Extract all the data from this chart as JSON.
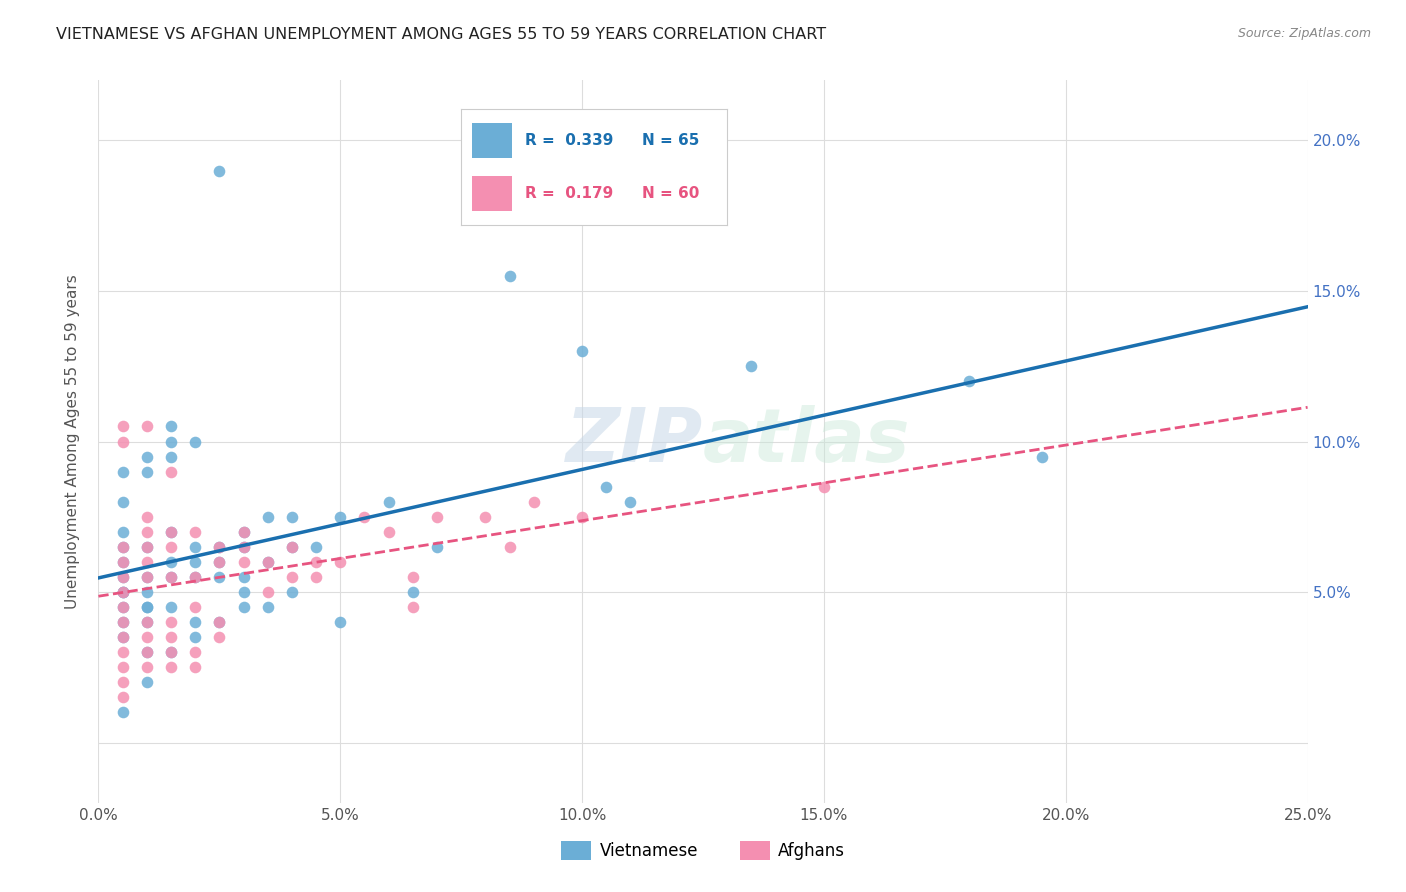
{
  "title": "VIETNAMESE VS AFGHAN UNEMPLOYMENT AMONG AGES 55 TO 59 YEARS CORRELATION CHART",
  "source": "Source: ZipAtlas.com",
  "ylabel": "Unemployment Among Ages 55 to 59 years",
  "xlim": [
    0,
    0.25
  ],
  "ylim": [
    -0.02,
    0.22
  ],
  "xticks": [
    0.0,
    0.05,
    0.1,
    0.15,
    0.2,
    0.25
  ],
  "yticks": [
    0.0,
    0.05,
    0.1,
    0.15,
    0.2
  ],
  "watermark": "ZIPatlas",
  "legend_r_vietnamese": "0.339",
  "legend_n_vietnamese": "65",
  "legend_r_afghan": "0.179",
  "legend_n_afghan": "60",
  "vietnamese_color": "#6baed6",
  "afghan_color": "#f48fb1",
  "trendline_vietnamese_color": "#1a6faf",
  "trendline_afghan_color": "#e75480",
  "vietnamese_points": [
    [
      0.005,
      0.045
    ],
    [
      0.005,
      0.06
    ],
    [
      0.005,
      0.07
    ],
    [
      0.005,
      0.05
    ],
    [
      0.005,
      0.04
    ],
    [
      0.005,
      0.035
    ],
    [
      0.005,
      0.05
    ],
    [
      0.005,
      0.09
    ],
    [
      0.005,
      0.08
    ],
    [
      0.005,
      0.065
    ],
    [
      0.005,
      0.055
    ],
    [
      0.005,
      0.01
    ],
    [
      0.01,
      0.045
    ],
    [
      0.01,
      0.09
    ],
    [
      0.01,
      0.095
    ],
    [
      0.01,
      0.065
    ],
    [
      0.01,
      0.055
    ],
    [
      0.01,
      0.05
    ],
    [
      0.01,
      0.04
    ],
    [
      0.01,
      0.03
    ],
    [
      0.01,
      0.02
    ],
    [
      0.01,
      0.045
    ],
    [
      0.015,
      0.095
    ],
    [
      0.015,
      0.105
    ],
    [
      0.015,
      0.1
    ],
    [
      0.015,
      0.055
    ],
    [
      0.015,
      0.06
    ],
    [
      0.015,
      0.07
    ],
    [
      0.015,
      0.045
    ],
    [
      0.015,
      0.03
    ],
    [
      0.02,
      0.06
    ],
    [
      0.02,
      0.1
    ],
    [
      0.02,
      0.065
    ],
    [
      0.02,
      0.055
    ],
    [
      0.02,
      0.04
    ],
    [
      0.02,
      0.035
    ],
    [
      0.025,
      0.065
    ],
    [
      0.025,
      0.04
    ],
    [
      0.025,
      0.06
    ],
    [
      0.025,
      0.055
    ],
    [
      0.03,
      0.045
    ],
    [
      0.03,
      0.05
    ],
    [
      0.03,
      0.055
    ],
    [
      0.03,
      0.07
    ],
    [
      0.03,
      0.065
    ],
    [
      0.035,
      0.06
    ],
    [
      0.035,
      0.045
    ],
    [
      0.035,
      0.075
    ],
    [
      0.04,
      0.065
    ],
    [
      0.04,
      0.075
    ],
    [
      0.04,
      0.05
    ],
    [
      0.045,
      0.065
    ],
    [
      0.05,
      0.075
    ],
    [
      0.05,
      0.04
    ],
    [
      0.06,
      0.08
    ],
    [
      0.065,
      0.05
    ],
    [
      0.07,
      0.065
    ],
    [
      0.085,
      0.155
    ],
    [
      0.1,
      0.13
    ],
    [
      0.105,
      0.085
    ],
    [
      0.11,
      0.08
    ],
    [
      0.135,
      0.125
    ],
    [
      0.18,
      0.12
    ],
    [
      0.195,
      0.095
    ],
    [
      0.025,
      0.19
    ]
  ],
  "afghan_points": [
    [
      0.005,
      0.04
    ],
    [
      0.005,
      0.035
    ],
    [
      0.005,
      0.03
    ],
    [
      0.005,
      0.025
    ],
    [
      0.005,
      0.02
    ],
    [
      0.005,
      0.045
    ],
    [
      0.005,
      0.055
    ],
    [
      0.005,
      0.105
    ],
    [
      0.005,
      0.1
    ],
    [
      0.005,
      0.06
    ],
    [
      0.005,
      0.05
    ],
    [
      0.005,
      0.065
    ],
    [
      0.01,
      0.04
    ],
    [
      0.01,
      0.035
    ],
    [
      0.01,
      0.03
    ],
    [
      0.01,
      0.025
    ],
    [
      0.01,
      0.055
    ],
    [
      0.01,
      0.06
    ],
    [
      0.01,
      0.065
    ],
    [
      0.01,
      0.07
    ],
    [
      0.01,
      0.075
    ],
    [
      0.01,
      0.105
    ],
    [
      0.015,
      0.035
    ],
    [
      0.015,
      0.03
    ],
    [
      0.015,
      0.025
    ],
    [
      0.015,
      0.04
    ],
    [
      0.015,
      0.055
    ],
    [
      0.015,
      0.07
    ],
    [
      0.015,
      0.065
    ],
    [
      0.015,
      0.09
    ],
    [
      0.02,
      0.03
    ],
    [
      0.02,
      0.025
    ],
    [
      0.02,
      0.045
    ],
    [
      0.02,
      0.055
    ],
    [
      0.02,
      0.07
    ],
    [
      0.025,
      0.035
    ],
    [
      0.025,
      0.04
    ],
    [
      0.025,
      0.06
    ],
    [
      0.025,
      0.065
    ],
    [
      0.03,
      0.06
    ],
    [
      0.03,
      0.065
    ],
    [
      0.03,
      0.07
    ],
    [
      0.035,
      0.05
    ],
    [
      0.035,
      0.06
    ],
    [
      0.04,
      0.055
    ],
    [
      0.04,
      0.065
    ],
    [
      0.045,
      0.055
    ],
    [
      0.045,
      0.06
    ],
    [
      0.05,
      0.06
    ],
    [
      0.055,
      0.075
    ],
    [
      0.06,
      0.07
    ],
    [
      0.065,
      0.045
    ],
    [
      0.065,
      0.055
    ],
    [
      0.07,
      0.075
    ],
    [
      0.08,
      0.075
    ],
    [
      0.085,
      0.065
    ],
    [
      0.09,
      0.08
    ],
    [
      0.1,
      0.075
    ],
    [
      0.15,
      0.085
    ],
    [
      0.005,
      0.015
    ]
  ],
  "background_color": "#ffffff",
  "grid_color": "#dddddd"
}
